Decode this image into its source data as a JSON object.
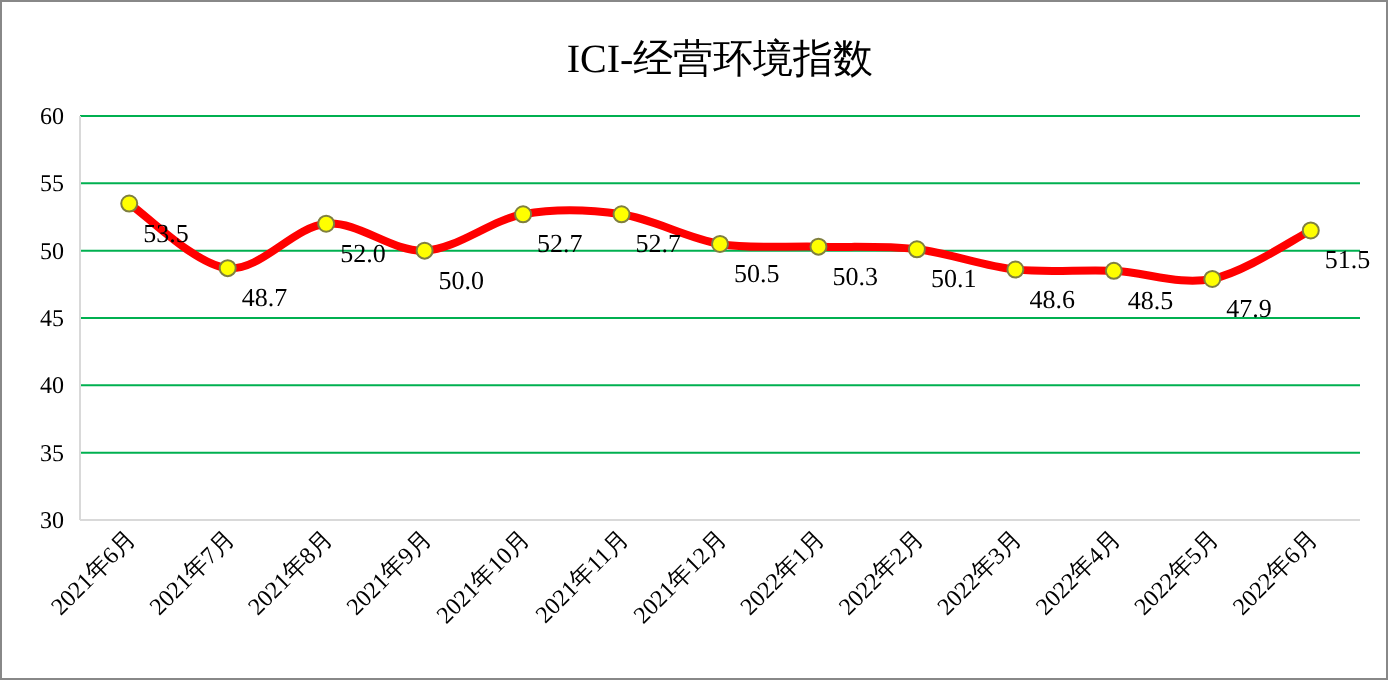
{
  "chart_data": {
    "type": "line",
    "title": "ICI-经营环境指数",
    "categories": [
      "2021年6月",
      "2021年7月",
      "2021年8月",
      "2021年9月",
      "2021年10月",
      "2021年11月",
      "2021年12月",
      "2022年1月",
      "2022年2月",
      "2022年3月",
      "2022年4月",
      "2022年5月",
      "2022年6月"
    ],
    "series": [
      {
        "color": "#ff0000",
        "values": [
          53.5,
          48.7,
          52.0,
          50.0,
          52.7,
          52.7,
          50.5,
          50.3,
          50.1,
          48.6,
          48.5,
          47.9,
          51.5
        ],
        "value_labels": [
          "53.5",
          "48.7",
          "52.0",
          "50.0",
          "52.7",
          "52.7",
          "50.5",
          "50.3",
          "50.1",
          "48.6",
          "48.5",
          "47.9",
          "51.5"
        ]
      }
    ],
    "ylim": [
      30,
      60
    ],
    "yticks": [
      30,
      35,
      40,
      45,
      50,
      55,
      60
    ],
    "grid": "y",
    "marker": "circle",
    "line_style": "solid"
  }
}
